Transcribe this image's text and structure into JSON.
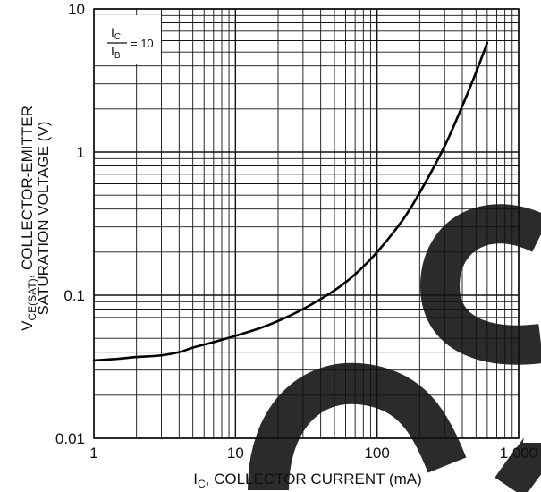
{
  "chart_data": {
    "type": "line",
    "x_scale": "log",
    "y_scale": "log",
    "xlim": [
      1,
      1000
    ],
    "ylim": [
      0.01,
      10
    ],
    "grid": true,
    "x_ticks": [
      "1",
      "10",
      "100",
      "1,000"
    ],
    "y_ticks": [
      "10",
      "1",
      "0.1",
      "0.01"
    ],
    "xlabel": {
      "main": "I",
      "sub": "C",
      "rest": ", COLLECTOR CURRENT (mA)"
    },
    "ylabel": {
      "line1_main": "V",
      "line1_sub": "CE(SAT)",
      "line1_rest": ", COLLECTOR-EMITTER",
      "line2": "SATURATION VOLTAGE (V)"
    },
    "annotation": {
      "num_main": "I",
      "num_sub": "C",
      "den_main": "I",
      "den_sub": "B",
      "eq": "= 10"
    },
    "series": [
      {
        "x": [
          1,
          1.5,
          2,
          3,
          4,
          5,
          7,
          10,
          15,
          20,
          30,
          50,
          70,
          100,
          150,
          200,
          300,
          400,
          500,
          600
        ],
        "y": [
          0.035,
          0.036,
          0.037,
          0.038,
          0.04,
          0.043,
          0.047,
          0.052,
          0.059,
          0.066,
          0.08,
          0.108,
          0.14,
          0.2,
          0.33,
          0.52,
          1.1,
          2.1,
          3.6,
          5.8
        ]
      }
    ],
    "colors": {
      "grid": "#111111",
      "line": "#000000",
      "watermark": "#2b2b2b"
    }
  }
}
